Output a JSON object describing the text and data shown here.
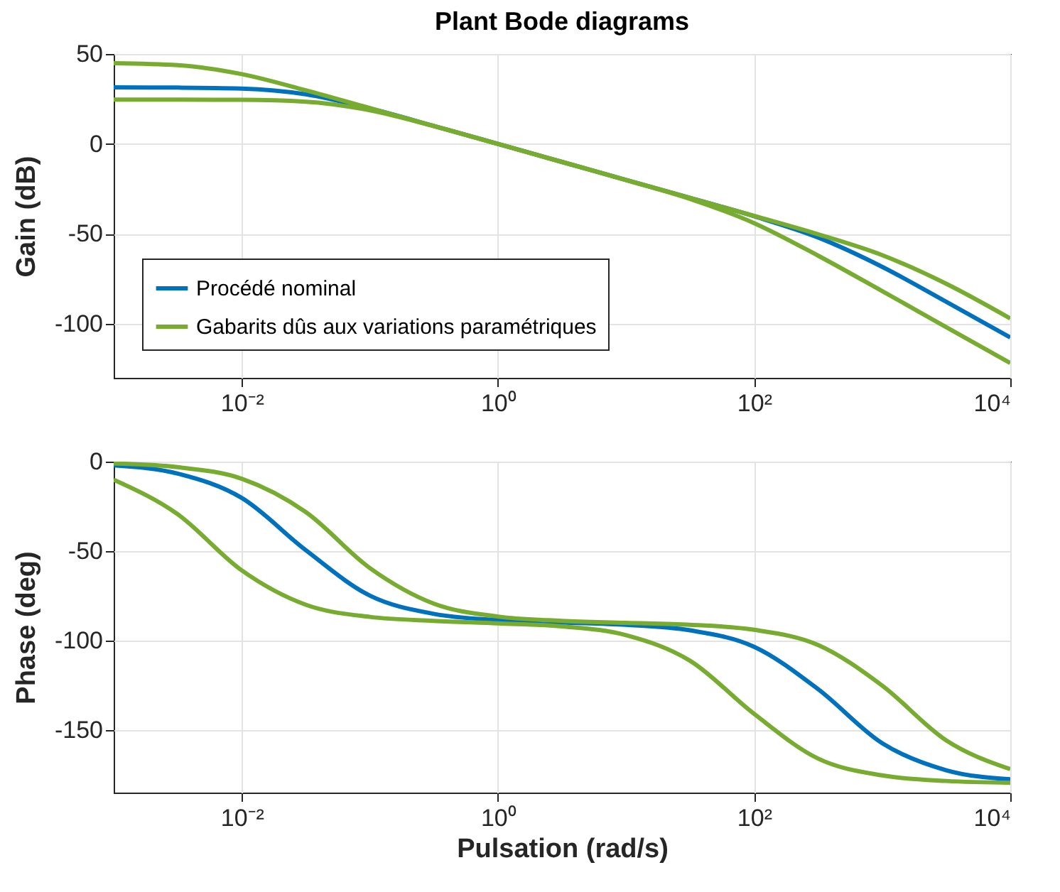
{
  "chart_data": [
    {
      "type": "line",
      "title": "Plant Bode diagrams",
      "ylabel": "Gain (dB)",
      "legend": "bottom left",
      "grid": true,
      "log": "x",
      "x": [
        0.001,
        0.00316,
        0.01,
        0.0316,
        0.1,
        0.316,
        1,
        3.16,
        10,
        31.6,
        100,
        316,
        1000,
        3160,
        10000
      ],
      "xlim": [
        0.001,
        10000
      ],
      "xticks": [
        {
          "value": 0.01,
          "label": "10⁻²"
        },
        {
          "value": 1,
          "label": "10⁰"
        },
        {
          "value": 100,
          "label": "10²"
        },
        {
          "value": 10000,
          "label": "10⁴"
        }
      ],
      "ylim": [
        -130,
        50
      ],
      "yticks": [
        -100,
        -50,
        0,
        50
      ],
      "series": [
        {
          "name": "Procédé nominal",
          "color": "#0072bd",
          "values": [
            31.4,
            31.3,
            30.8,
            27.6,
            19.7,
            10,
            0,
            -10,
            -20,
            -30,
            -40.2,
            -52,
            -68.3,
            -87.7,
            -107.6
          ]
        },
        {
          "name": "Gabarits dûs aux variations paramétriques",
          "color": "#77ac30",
          "values": [
            44.9,
            43.8,
            38.8,
            29.8,
            19.9,
            10,
            0,
            -10,
            -20.1,
            -30.6,
            -44,
            -62.1,
            -81.8,
            -101.8,
            -121.8
          ]
        },
        {
          "color": "#77ac30",
          "values": [
            24.6,
            24.6,
            24.5,
            23.5,
            18.7,
            9.9,
            0,
            -10,
            -20,
            -30,
            -40,
            -50.2,
            -61.8,
            -77.7,
            -97
          ]
        }
      ]
    },
    {
      "type": "line",
      "xlabel": "Pulsation (rad/s)",
      "ylabel": "Phase (deg)",
      "grid": true,
      "log": "x",
      "x": [
        0.001,
        0.00316,
        0.01,
        0.0316,
        0.1,
        0.316,
        1,
        3.16,
        10,
        31.6,
        100,
        316,
        1000,
        3160,
        10000
      ],
      "xlim": [
        0.001,
        10000
      ],
      "xticks": [
        {
          "value": 0.01,
          "label": "10⁻²"
        },
        {
          "value": 1,
          "label": "10⁰"
        },
        {
          "value": 100,
          "label": "10²"
        },
        {
          "value": 10000,
          "label": "10⁴"
        }
      ],
      "ylim": [
        -185,
        0
      ],
      "yticks": [
        -150,
        -100,
        -50,
        0
      ],
      "series": [
        {
          "color": "#0072bd",
          "values": [
            -2.1,
            -6.7,
            -20.3,
            -49.5,
            -74.9,
            -85.1,
            -88.6,
            -89.9,
            -91.2,
            -94.3,
            -103.5,
            -127.2,
            -157.4,
            -172.5,
            -177.6
          ]
        },
        {
          "color": "#77ac30",
          "values": [
            -10.1,
            -29.4,
            -60.8,
            -80,
            -86.8,
            -89,
            -90.4,
            -92.1,
            -97,
            -111.3,
            -141,
            -166,
            -175.4,
            -178.5,
            -179.5
          ]
        },
        {
          "color": "#77ac30",
          "values": [
            -1,
            -3.1,
            -9.6,
            -28.2,
            -59.5,
            -79.4,
            -86.6,
            -89,
            -90.1,
            -91.2,
            -94,
            -102.5,
            -125.2,
            -155.8,
            -171.9
          ]
        }
      ]
    }
  ]
}
